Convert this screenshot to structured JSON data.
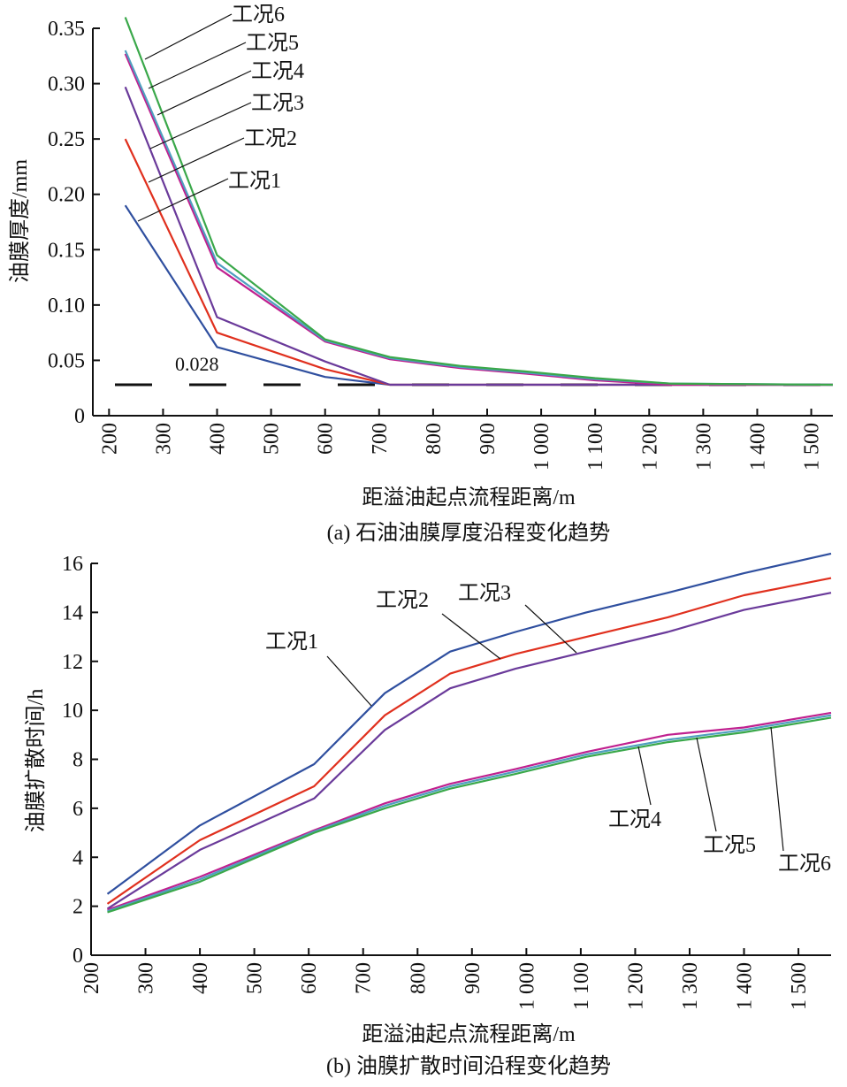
{
  "colors": {
    "工况1": "#2f4f9f",
    "工况2": "#e0301e",
    "工况3": "#6a3a9a",
    "工况4": "#c0208f",
    "工况5": "#4f9fc0",
    "工况6": "#3aa84a",
    "axis": "#111111",
    "threshold": "#111111"
  },
  "chart_data": [
    {
      "type": "line",
      "caption": "(a) 石油油膜厚度沿程变化趋势",
      "xlabel": "距溢油起点流程距离/m",
      "ylabel": "油膜厚度/mm",
      "xlim": [
        170,
        1540
      ],
      "ylim": [
        0,
        0.35
      ],
      "x_ticks": [
        200,
        300,
        400,
        500,
        600,
        700,
        800,
        900,
        1000,
        1100,
        1200,
        1300,
        1400,
        1500
      ],
      "x_tick_labels": [
        "200",
        "300",
        "400",
        "500",
        "600",
        "700",
        "800",
        "900",
        "1 000",
        "1 100",
        "1 200",
        "1 300",
        "1 400",
        "1 500"
      ],
      "y_ticks": [
        0,
        0.05,
        0.1,
        0.15,
        0.2,
        0.25,
        0.3,
        0.35
      ],
      "y_tick_labels": [
        "0",
        "0.05",
        "0.10",
        "0.15",
        "0.20",
        "0.25",
        "0.30",
        "0.35"
      ],
      "threshold": {
        "value": 0.028,
        "label": "0.028"
      },
      "x": [
        230,
        400,
        600,
        720,
        850,
        970,
        1100,
        1240,
        1540
      ],
      "series": [
        {
          "name": "工况1",
          "values": [
            0.19,
            0.062,
            0.035,
            0.028,
            0.028,
            0.028,
            0.028,
            0.028,
            0.028
          ]
        },
        {
          "name": "工况2",
          "values": [
            0.25,
            0.075,
            0.042,
            0.028,
            0.028,
            0.028,
            0.028,
            0.028,
            0.028
          ]
        },
        {
          "name": "工况3",
          "values": [
            0.297,
            0.089,
            0.049,
            0.028,
            0.028,
            0.028,
            0.028,
            0.028,
            0.028
          ]
        },
        {
          "name": "工况4",
          "values": [
            0.327,
            0.134,
            0.067,
            0.051,
            0.043,
            0.038,
            0.032,
            0.028,
            0.028
          ]
        },
        {
          "name": "工况5",
          "values": [
            0.33,
            0.138,
            0.068,
            0.052,
            0.044,
            0.039,
            0.033,
            0.029,
            0.028
          ]
        },
        {
          "name": "工况6",
          "values": [
            0.36,
            0.145,
            0.069,
            0.053,
            0.045,
            0.04,
            0.034,
            0.029,
            0.028
          ]
        }
      ]
    },
    {
      "type": "line",
      "caption": "(b) 油膜扩散时间沿程变化趋势",
      "xlabel": "距溢油起点流程距离/m",
      "ylabel": "油膜扩散时间/h",
      "xlim": [
        200,
        1560
      ],
      "ylim": [
        0,
        16
      ],
      "x_ticks": [
        200,
        300,
        400,
        500,
        600,
        700,
        800,
        900,
        1000,
        1100,
        1200,
        1300,
        1400,
        1500
      ],
      "x_tick_labels": [
        "200",
        "300",
        "400",
        "500",
        "600",
        "700",
        "800",
        "900",
        "1 000",
        "1 100",
        "1 200",
        "1 300",
        "1 400",
        "1 500"
      ],
      "y_ticks": [
        0,
        2,
        4,
        6,
        8,
        10,
        12,
        14,
        16
      ],
      "y_tick_labels": [
        "0",
        "2",
        "4",
        "6",
        "8",
        "10",
        "12",
        "14",
        "16"
      ],
      "x": [
        230,
        400,
        610,
        740,
        860,
        980,
        1110,
        1260,
        1400,
        1560
      ],
      "series": [
        {
          "name": "工况1",
          "values": [
            2.5,
            5.3,
            7.8,
            10.7,
            12.4,
            13.2,
            14.0,
            14.8,
            15.6,
            16.4
          ]
        },
        {
          "name": "工况2",
          "values": [
            2.1,
            4.7,
            6.9,
            9.8,
            11.5,
            12.3,
            13.0,
            13.8,
            14.7,
            15.4
          ]
        },
        {
          "name": "工况3",
          "values": [
            1.9,
            4.3,
            6.4,
            9.2,
            10.9,
            11.7,
            12.4,
            13.2,
            14.1,
            14.8
          ]
        },
        {
          "name": "工况4",
          "values": [
            1.85,
            3.2,
            5.1,
            6.2,
            7.0,
            7.6,
            8.3,
            9.0,
            9.3,
            9.9
          ]
        },
        {
          "name": "工况5",
          "values": [
            1.8,
            3.1,
            5.05,
            6.1,
            6.9,
            7.5,
            8.2,
            8.8,
            9.2,
            9.8
          ]
        },
        {
          "name": "工况6",
          "values": [
            1.75,
            3.0,
            5.0,
            6.0,
            6.8,
            7.4,
            8.1,
            8.7,
            9.1,
            9.7
          ]
        }
      ]
    }
  ]
}
